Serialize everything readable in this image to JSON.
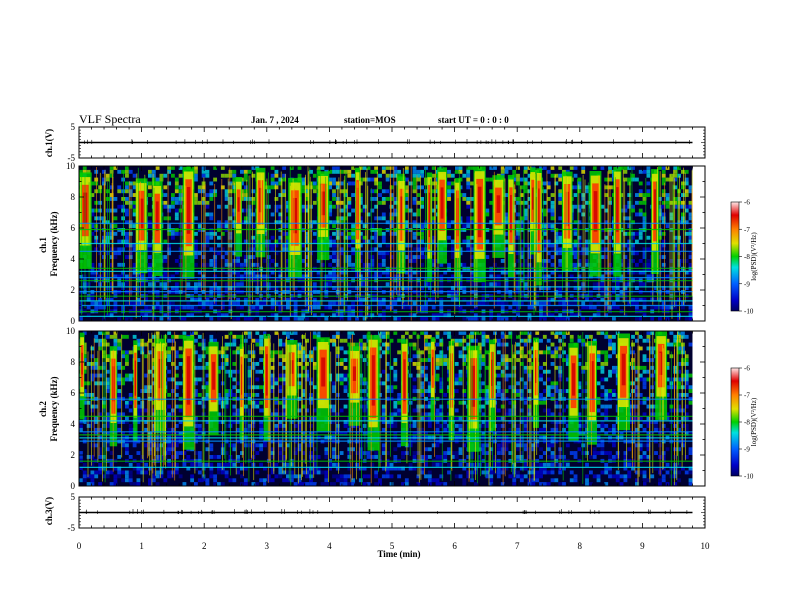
{
  "header": {
    "title": "VLF Spectra",
    "date": "Jan. 7 , 2024",
    "station": "station=MOS",
    "start_ut": "start UT =  0 : 0 : 0"
  },
  "chart_data": [
    {
      "type": "line",
      "id": "ch1-waveform",
      "ylabel": "ch.1(V)",
      "ylim": [
        -5,
        5
      ],
      "yticks": [
        "5",
        "-5"
      ],
      "xlim": [
        0,
        10
      ],
      "series": [
        {
          "x": [
            0,
            9.8
          ],
          "y": [
            0,
            0
          ]
        }
      ]
    },
    {
      "type": "heatmap",
      "id": "ch1-spectrogram",
      "ylabel_top": "ch.1",
      "ylabel": "Frequency (kHz)",
      "ylim": [
        0,
        10
      ],
      "yticks": [
        "0",
        "2",
        "4",
        "6",
        "8",
        "10"
      ],
      "xlim": [
        0,
        10
      ],
      "data_xmax": 9.8,
      "colorbar": {
        "label": "log(PSD)(V²/Hz)",
        "range": [
          -10,
          -6
        ],
        "ticks": [
          "-6",
          "-7",
          "-8",
          "-9",
          "-10"
        ]
      },
      "band_lines_khz": [
        0.3,
        0.6,
        1.0,
        1.3,
        1.6,
        1.9,
        2.2,
        2.6,
        2.8,
        3.2,
        3.4,
        4.5,
        5.0,
        5.9,
        6.3
      ],
      "strong_events_min": [
        0.1,
        1.0,
        1.25,
        1.75,
        2.55,
        2.9,
        3.45,
        3.9,
        4.45,
        5.15,
        5.6,
        5.8,
        6.05,
        6.4,
        6.7,
        6.9,
        7.25,
        7.35,
        7.8,
        8.25,
        8.6,
        9.2
      ]
    },
    {
      "type": "heatmap",
      "id": "ch2-spectrogram",
      "ylabel_top": "ch.2",
      "ylabel": "Frequency (kHz)",
      "ylim": [
        0,
        10
      ],
      "yticks": [
        "0",
        "2",
        "4",
        "6",
        "8",
        "10"
      ],
      "xlim": [
        0,
        10
      ],
      "data_xmax": 9.8,
      "colorbar": {
        "label": "log(PSD)(V²/Hz)",
        "range": [
          -10,
          -6
        ],
        "ticks": [
          "-6",
          "-7",
          "-8",
          "-9",
          "-10"
        ]
      },
      "band_lines_khz": [
        1.2,
        1.6,
        2.9,
        3.1,
        3.3,
        3.5,
        4.2,
        4.5,
        5.6
      ],
      "strong_events_min": [
        0.05,
        0.55,
        0.9,
        1.3,
        1.75,
        2.15,
        2.6,
        3.0,
        3.4,
        3.9,
        4.4,
        4.7,
        5.2,
        5.65,
        5.95,
        6.3,
        6.6,
        7.3,
        7.9,
        8.2,
        8.7,
        9.3
      ]
    },
    {
      "type": "line",
      "id": "ch3-waveform",
      "ylabel": "ch.3(V)",
      "ylim": [
        -5,
        5
      ],
      "yticks": [
        "5",
        "-5"
      ],
      "xlim": [
        0,
        10
      ],
      "xlabel": "Time (min)",
      "xticks": [
        "0",
        "1",
        "2",
        "3",
        "4",
        "5",
        "6",
        "7",
        "8",
        "9",
        "10"
      ],
      "series": [
        {
          "x": [
            0,
            9.8
          ],
          "y": [
            0,
            0
          ]
        }
      ]
    }
  ]
}
